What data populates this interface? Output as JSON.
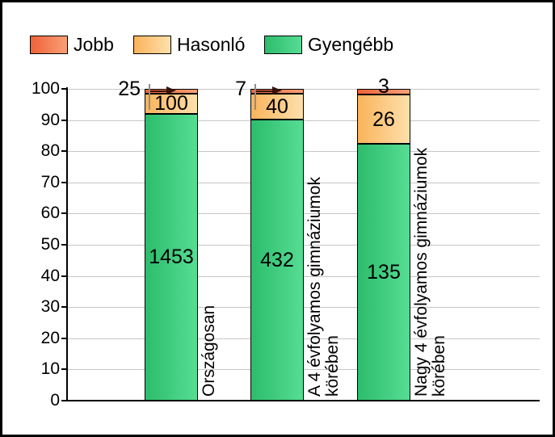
{
  "legend": {
    "items": [
      {
        "label": "Jobb",
        "color_left": "#ef6238",
        "color_right": "#f9a078"
      },
      {
        "label": "Hasonló",
        "color_left": "#fab45b",
        "color_right": "#fde0ac"
      },
      {
        "label": "Gyengébb",
        "color_left": "#2dbc6c",
        "color_right": "#55dd94"
      }
    ]
  },
  "chart_data": {
    "type": "bar",
    "stacked": true,
    "stack_normalized_to_percent": 100,
    "title": "",
    "xlabel": "",
    "ylabel": "",
    "categories": [
      "Országosan",
      "A 4 évfolyamos gimnáziumok körében",
      "Nagy 4 évfolyamos gimnáziumok körében"
    ],
    "category_lines": [
      [
        "Országosan"
      ],
      [
        "A 4 évfolyamos gimnáziumok",
        "körében"
      ],
      [
        "Nagy 4 évfolyamos gimnáziumok",
        "körében"
      ]
    ],
    "series": [
      {
        "name": "Gyengébb",
        "values": [
          1453,
          432,
          135
        ]
      },
      {
        "name": "Hasonló",
        "values": [
          100,
          40,
          26
        ]
      },
      {
        "name": "Jobb",
        "values": [
          25,
          7,
          3
        ]
      }
    ],
    "ylim": [
      0,
      100
    ],
    "yticks": [
      0,
      10,
      20,
      30,
      40,
      50,
      60,
      70,
      80,
      90,
      100
    ],
    "grid": true,
    "grid_color": "#c6c6c6",
    "legend_position": "top-left"
  }
}
